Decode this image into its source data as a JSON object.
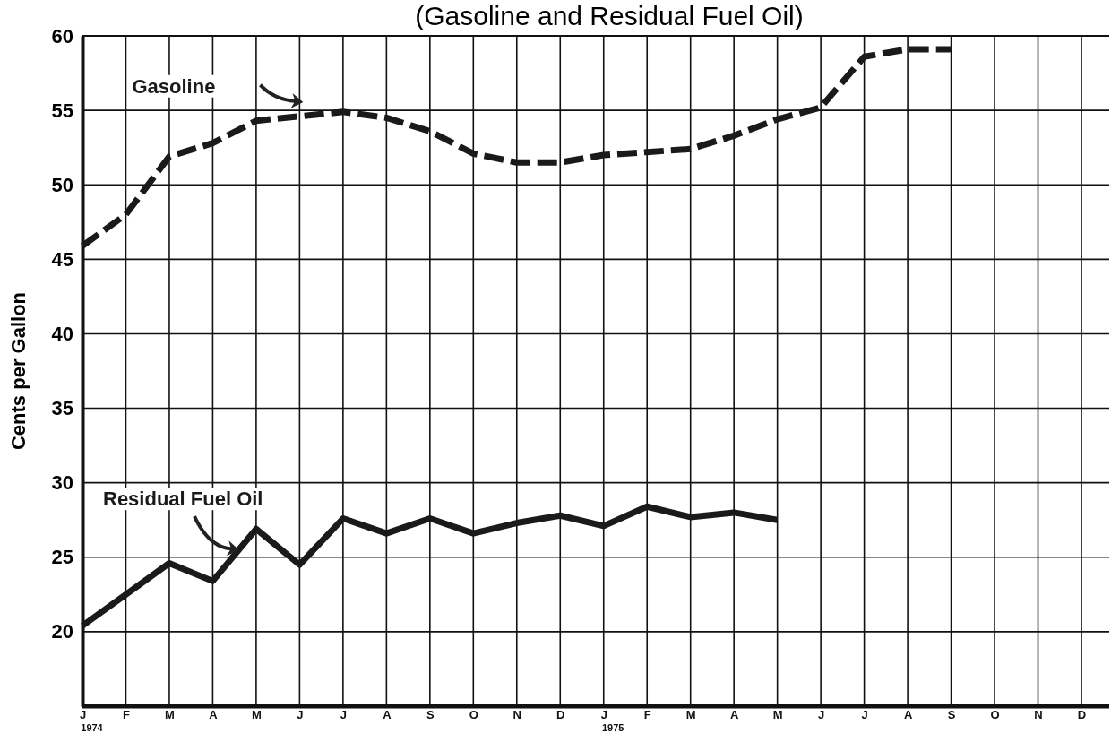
{
  "chart_data": {
    "type": "line",
    "title": "(Gasoline and Residual Fuel Oil)",
    "ylabel": "Cents per Gallon",
    "categories": [
      "J\n1974",
      "F",
      "M",
      "A",
      "M",
      "J",
      "J",
      "A",
      "S",
      "O",
      "N",
      "D",
      "J\n1975",
      "F",
      "M",
      "A",
      "M",
      "J",
      "J",
      "A",
      "S",
      "O",
      "N",
      "D"
    ],
    "series": [
      {
        "name": "Gasoline",
        "color": "#1a1a1a",
        "line_style": "dashed",
        "values": [
          45.9,
          48.0,
          51.9,
          52.8,
          54.3,
          54.6,
          54.9,
          54.5,
          53.6,
          52.1,
          51.5,
          51.5,
          52.0,
          52.2,
          52.4,
          53.3,
          54.4,
          55.2,
          58.6,
          59.1,
          59.1,
          null,
          null,
          null
        ]
      },
      {
        "name": "Residual Fuel Oil",
        "color": "#1a1a1a",
        "line_style": "solid",
        "values": [
          20.4,
          22.5,
          24.6,
          23.4,
          26.9,
          24.5,
          27.6,
          26.6,
          27.6,
          26.6,
          27.3,
          27.8,
          27.1,
          28.4,
          27.7,
          28.0,
          27.5,
          null,
          null,
          null,
          null,
          null,
          null,
          null
        ]
      }
    ],
    "ylim": [
      15,
      60
    ],
    "yticks": [
      20,
      25,
      30,
      35,
      40,
      45,
      50,
      55,
      60
    ],
    "grid": true,
    "marker": "none"
  }
}
